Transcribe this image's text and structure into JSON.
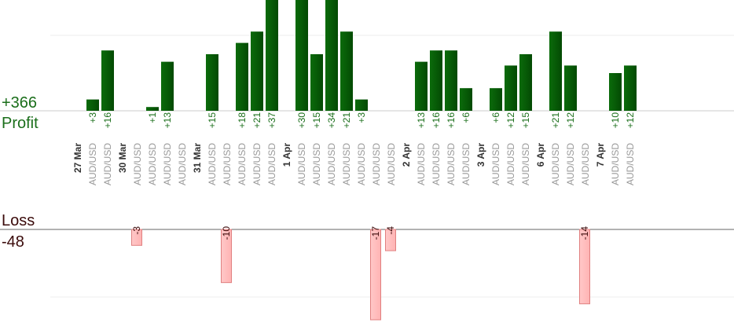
{
  "summary": {
    "profit_total": "+366",
    "profit_label": "Profit",
    "loss_label": "Loss",
    "loss_total": "-48"
  },
  "colors": {
    "profit_bar": "#0b6b0b",
    "profit_bar_dark": "#034a03",
    "profit_text": "#1a6e1a",
    "loss_bar": "#ffb3b3",
    "loss_bar_border": "#e08080",
    "loss_text": "#3a0a0a",
    "day_label": "#333333",
    "pair_label": "#999999",
    "grid": "#eeeeee",
    "axis": "#666666"
  },
  "chart_data": {
    "type": "bar",
    "profit_scale_max": 20,
    "loss_scale_max": 17,
    "slots": [
      {
        "type": "day",
        "label": "27 Mar"
      },
      {
        "type": "trade",
        "pair": "AUD/USD",
        "value": 3,
        "label": "+3"
      },
      {
        "type": "trade",
        "pair": "AUD/USD",
        "value": 16,
        "label": "+16"
      },
      {
        "type": "day",
        "label": "30 Mar"
      },
      {
        "type": "trade",
        "pair": "AUD/USD",
        "value": -3,
        "label": "-3"
      },
      {
        "type": "trade",
        "pair": "AUD/USD",
        "value": 1,
        "label": "+1"
      },
      {
        "type": "trade",
        "pair": "AUD/USD",
        "value": 13,
        "label": "+13"
      },
      {
        "type": "trade",
        "pair": "AUD/USD",
        "value": null,
        "label": ""
      },
      {
        "type": "day",
        "label": "31 Mar"
      },
      {
        "type": "trade",
        "pair": "AUD/USD",
        "value": 15,
        "label": "+15"
      },
      {
        "type": "trade",
        "pair": "AUD/USD",
        "value": -10,
        "label": "-10"
      },
      {
        "type": "trade",
        "pair": "AUD/USD",
        "value": 18,
        "label": "+18"
      },
      {
        "type": "trade",
        "pair": "AUD/USD",
        "value": 21,
        "label": "+21"
      },
      {
        "type": "trade",
        "pair": "AUD/USD",
        "value": 37,
        "label": "+37"
      },
      {
        "type": "day",
        "label": "1 Apr"
      },
      {
        "type": "trade",
        "pair": "AUD/USD",
        "value": 30,
        "label": "+30"
      },
      {
        "type": "trade",
        "pair": "AUD/USD",
        "value": 15,
        "label": "+15"
      },
      {
        "type": "trade",
        "pair": "AUD/USD",
        "value": 34,
        "label": "+34"
      },
      {
        "type": "trade",
        "pair": "AUD/USD",
        "value": 21,
        "label": "+21"
      },
      {
        "type": "trade",
        "pair": "AUD/USD",
        "value": 3,
        "label": "+3"
      },
      {
        "type": "trade",
        "pair": "AUD/USD",
        "value": -17,
        "label": "-17"
      },
      {
        "type": "trade",
        "pair": "AUD/USD",
        "value": -4,
        "label": "-4"
      },
      {
        "type": "day",
        "label": "2 Apr"
      },
      {
        "type": "trade",
        "pair": "AUD/USD",
        "value": 13,
        "label": "+13"
      },
      {
        "type": "trade",
        "pair": "AUD/USD",
        "value": 16,
        "label": "+16"
      },
      {
        "type": "trade",
        "pair": "AUD/USD",
        "value": 16,
        "label": "+16"
      },
      {
        "type": "trade",
        "pair": "AUD/USD",
        "value": 6,
        "label": "+6"
      },
      {
        "type": "day",
        "label": "3 Apr"
      },
      {
        "type": "trade",
        "pair": "AUD/USD",
        "value": 6,
        "label": "+6"
      },
      {
        "type": "trade",
        "pair": "AUD/USD",
        "value": 12,
        "label": "+12"
      },
      {
        "type": "trade",
        "pair": "AUD/USD",
        "value": 15,
        "label": "+15"
      },
      {
        "type": "day",
        "label": "6 Apr"
      },
      {
        "type": "trade",
        "pair": "AUD/USD",
        "value": 21,
        "label": "+21"
      },
      {
        "type": "trade",
        "pair": "AUD/USD",
        "value": 12,
        "label": "+12"
      },
      {
        "type": "trade",
        "pair": "AUD/USD",
        "value": -14,
        "label": "-14"
      },
      {
        "type": "day",
        "label": "7 Apr"
      },
      {
        "type": "trade",
        "pair": "AUD/USD",
        "value": 10,
        "label": "+10"
      },
      {
        "type": "trade",
        "pair": "AUD/USD",
        "value": 12,
        "label": "+12"
      }
    ]
  }
}
